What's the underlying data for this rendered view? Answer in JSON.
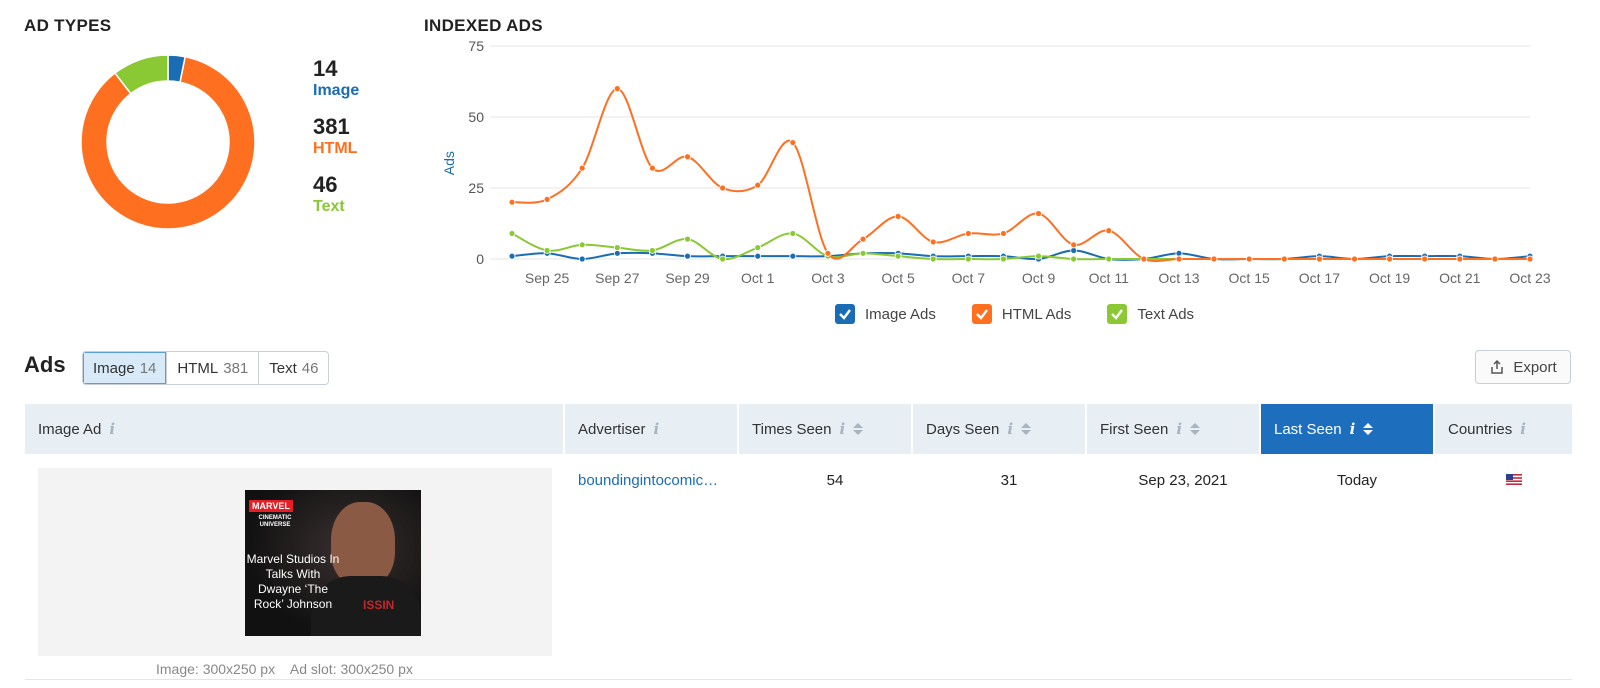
{
  "ad_types": {
    "title": "AD TYPES",
    "items": [
      {
        "count": "14",
        "label": "Image",
        "color": "#1a6db5",
        "value": 14
      },
      {
        "count": "381",
        "label": "HTML",
        "color": "#ff6f20",
        "value": 381
      },
      {
        "count": "46",
        "label": "Text",
        "color": "#8ac834",
        "value": 46
      }
    ]
  },
  "indexed_ads": {
    "title": "INDEXED ADS",
    "legend": [
      {
        "label": "Image Ads",
        "color": "#1a6db5"
      },
      {
        "label": "HTML Ads",
        "color": "#ff6f20"
      },
      {
        "label": "Text Ads",
        "color": "#8ac834"
      }
    ]
  },
  "chart_data": [
    {
      "type": "pie",
      "categories": [
        "Image",
        "HTML",
        "Text"
      ],
      "values": [
        14,
        381,
        46
      ],
      "colors": [
        "#1a6db5",
        "#ff6f20",
        "#8ac834"
      ]
    },
    {
      "type": "line",
      "title": "INDEXED ADS",
      "ylabel": "Ads",
      "ylim": [
        0,
        75
      ],
      "yticks": [
        0,
        25,
        50,
        75
      ],
      "x": [
        "Sep 24",
        "Sep 25",
        "Sep 26",
        "Sep 27",
        "Sep 28",
        "Sep 29",
        "Sep 30",
        "Oct 1",
        "Oct 2",
        "Oct 3",
        "Oct 4",
        "Oct 5",
        "Oct 6",
        "Oct 7",
        "Oct 8",
        "Oct 9",
        "Oct 10",
        "Oct 11",
        "Oct 12",
        "Oct 13",
        "Oct 14",
        "Oct 15",
        "Oct 16",
        "Oct 17",
        "Oct 18",
        "Oct 19",
        "Oct 20",
        "Oct 21",
        "Oct 22",
        "Oct 23"
      ],
      "xtick_labels": [
        "Sep 25",
        "Sep 27",
        "Sep 29",
        "Oct 1",
        "Oct 3",
        "Oct 5",
        "Oct 7",
        "Oct 9",
        "Oct 11",
        "Oct 13",
        "Oct 15",
        "Oct 17",
        "Oct 19",
        "Oct 21",
        "Oct 23"
      ],
      "grid": true,
      "legend": "bottom",
      "series": [
        {
          "name": "Image Ads",
          "color": "#1a6db5",
          "values": [
            1,
            2,
            0,
            2,
            2,
            1,
            1,
            1,
            1,
            1,
            2,
            2,
            1,
            1,
            1,
            0,
            3,
            0,
            0,
            2,
            0,
            0,
            0,
            1,
            0,
            1,
            1,
            1,
            0,
            1
          ]
        },
        {
          "name": "HTML Ads",
          "color": "#ff6f20",
          "values": [
            20,
            21,
            32,
            60,
            32,
            36,
            25,
            26,
            41,
            2,
            7,
            15,
            6,
            9,
            9,
            16,
            5,
            10,
            0,
            0,
            0,
            0,
            0,
            0,
            0,
            0,
            0,
            0,
            0,
            0
          ]
        },
        {
          "name": "Text Ads",
          "color": "#8ac834",
          "values": [
            9,
            3,
            5,
            4,
            3,
            7,
            0,
            4,
            9,
            1,
            2,
            1,
            0,
            0,
            0,
            1,
            0,
            0,
            0,
            0,
            0,
            0,
            0,
            0,
            0,
            0,
            0,
            0,
            0,
            0
          ]
        }
      ]
    }
  ],
  "ads": {
    "title": "Ads",
    "tabs": [
      {
        "label": "Image",
        "count": "14"
      },
      {
        "label": "HTML",
        "count": "381"
      },
      {
        "label": "Text",
        "count": "46"
      }
    ],
    "export_label": "Export",
    "columns": [
      "Image Ad",
      "Advertiser",
      "Times Seen",
      "Days Seen",
      "First Seen",
      "Last Seen",
      "Countries"
    ],
    "row": {
      "ad_caption": "Marvel Studios In Talks With Dwayne ‘The Rock’ Johnson",
      "advertiser": "boundingintocomic…",
      "times_seen": "54",
      "days_seen": "31",
      "first_seen": "Sep 23, 2021",
      "last_seen": "Today",
      "country": "United States",
      "image_size": "Image: 300x250 px",
      "ad_slot": "Ad slot: 300x250 px"
    }
  }
}
